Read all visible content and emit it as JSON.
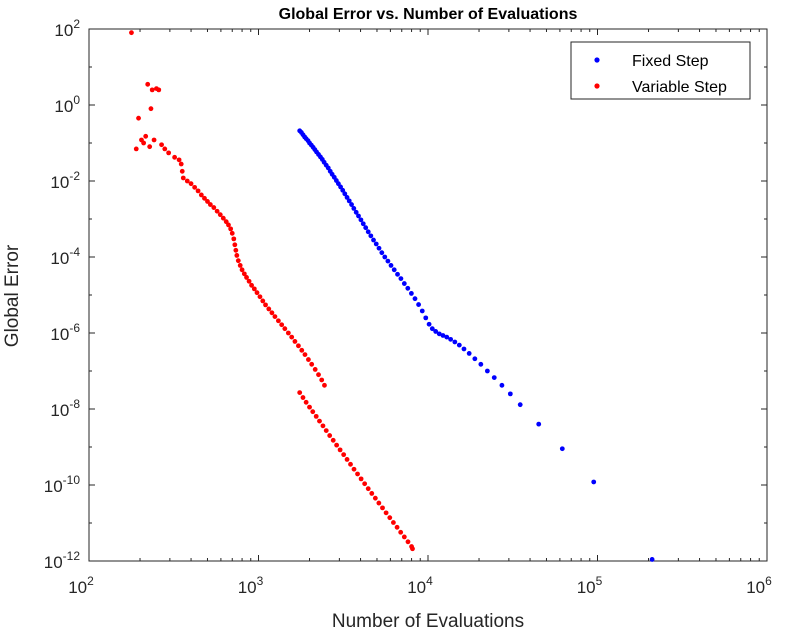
{
  "chart_data": {
    "type": "scatter",
    "title": "Global Error vs. Number of Evaluations",
    "xlabel": "Number of Evaluations",
    "ylabel": "Global Error",
    "xscale": "log",
    "yscale": "log",
    "xlim": [
      100,
      1000000
    ],
    "ylim": [
      1e-12,
      100
    ],
    "grid": false,
    "legend_position": "top-right",
    "x_ticks": [
      {
        "value": 100,
        "base": "10",
        "exp": "2"
      },
      {
        "value": 1000,
        "base": "10",
        "exp": "3"
      },
      {
        "value": 10000,
        "base": "10",
        "exp": "4"
      },
      {
        "value": 100000,
        "base": "10",
        "exp": "5"
      },
      {
        "value": 1000000,
        "base": "10",
        "exp": "6"
      }
    ],
    "y_ticks": [
      {
        "value": 1e-12,
        "base": "10",
        "exp": "-12"
      },
      {
        "value": 1e-10,
        "base": "10",
        "exp": "-10"
      },
      {
        "value": 1e-08,
        "base": "10",
        "exp": "-8"
      },
      {
        "value": 1e-06,
        "base": "10",
        "exp": "-6"
      },
      {
        "value": 0.0001,
        "base": "10",
        "exp": "-4"
      },
      {
        "value": 0.01,
        "base": "10",
        "exp": "-2"
      },
      {
        "value": 1,
        "base": "10",
        "exp": "0"
      },
      {
        "value": 100,
        "base": "10",
        "exp": "2"
      }
    ],
    "series": [
      {
        "name": "Fixed Step",
        "color": "#0000ff",
        "points": [
          [
            1750,
            0.21
          ],
          [
            1790,
            0.19
          ],
          [
            1830,
            0.165
          ],
          [
            1870,
            0.145
          ],
          [
            1910,
            0.13
          ],
          [
            1960,
            0.115
          ],
          [
            2000,
            0.1
          ],
          [
            2050,
            0.088
          ],
          [
            2100,
            0.077
          ],
          [
            2150,
            0.067
          ],
          [
            2200,
            0.058
          ],
          [
            2260,
            0.05
          ],
          [
            2320,
            0.043
          ],
          [
            2380,
            0.037
          ],
          [
            2440,
            0.031
          ],
          [
            2510,
            0.026
          ],
          [
            2580,
            0.022
          ],
          [
            2650,
            0.018
          ],
          [
            2720,
            0.015
          ],
          [
            2800,
            0.0125
          ],
          [
            2880,
            0.0103
          ],
          [
            2960,
            0.0085
          ],
          [
            3050,
            0.007
          ],
          [
            3140,
            0.0057
          ],
          [
            3230,
            0.0046
          ],
          [
            3330,
            0.0037
          ],
          [
            3430,
            0.003
          ],
          [
            3540,
            0.0024
          ],
          [
            3650,
            0.0019
          ],
          [
            3770,
            0.0015
          ],
          [
            3890,
            0.0012
          ],
          [
            4020,
            0.00095
          ],
          [
            4150,
            0.00075
          ],
          [
            4290,
            0.00059
          ],
          [
            4440,
            0.00046
          ],
          [
            4600,
            0.00036
          ],
          [
            4770,
            0.00028
          ],
          [
            4950,
            0.00022
          ],
          [
            5140,
            0.00017
          ],
          [
            5340,
            0.00013
          ],
          [
            5560,
            0.0001
          ],
          [
            5800,
            7.8e-05
          ],
          [
            6050,
            6e-05
          ],
          [
            6320,
            4.6e-05
          ],
          [
            6610,
            3.5e-05
          ],
          [
            6920,
            2.7e-05
          ],
          [
            7250,
            2e-05
          ],
          [
            7600,
            1.5e-05
          ],
          [
            7980,
            1.1e-05
          ],
          [
            8380,
            8e-06
          ],
          [
            8800,
            5.6e-06
          ],
          [
            9250,
            3.8e-06
          ],
          [
            9700,
            2.5e-06
          ],
          [
            10150,
            1.7e-06
          ],
          [
            10600,
            1.3e-06
          ],
          [
            11100,
            1.1e-06
          ],
          [
            11650,
            9.5e-07
          ],
          [
            12250,
            8.6e-07
          ],
          [
            12900,
            7.8e-07
          ],
          [
            13600,
            6.8e-07
          ],
          [
            14400,
            5.8e-07
          ],
          [
            15300,
            4.8e-07
          ],
          [
            16300,
            3.8e-07
          ],
          [
            17500,
            2.9e-07
          ],
          [
            18900,
            2.1e-07
          ],
          [
            20500,
            1.5e-07
          ],
          [
            22400,
            1e-07
          ],
          [
            24600,
            6.7e-08
          ],
          [
            27300,
            4.2e-08
          ],
          [
            30600,
            2.5e-08
          ],
          [
            35000,
            1.3e-08
          ],
          [
            45000,
            4e-09
          ],
          [
            62000,
            9e-10
          ],
          [
            95000,
            1.2e-10
          ],
          [
            210000,
            1.1e-12
          ]
        ]
      },
      {
        "name": "Variable Step",
        "color": "#ff0000",
        "points": [
          [
            178,
            80
          ],
          [
            190,
            0.07
          ],
          [
            196,
            0.45
          ],
          [
            204,
            0.12
          ],
          [
            210,
            0.1
          ],
          [
            216,
            0.15
          ],
          [
            222,
            3.5
          ],
          [
            228,
            0.08
          ],
          [
            232,
            0.8
          ],
          [
            236,
            2.5
          ],
          [
            242,
            0.12
          ],
          [
            250,
            2.7
          ],
          [
            258,
            2.5
          ],
          [
            268,
            0.09
          ],
          [
            280,
            0.07
          ],
          [
            295,
            0.055
          ],
          [
            320,
            0.042
          ],
          [
            340,
            0.036
          ],
          [
            350,
            0.028
          ],
          [
            355,
            0.018
          ],
          [
            360,
            0.012
          ],
          [
            380,
            0.01
          ],
          [
            400,
            0.0085
          ],
          [
            420,
            0.0068
          ],
          [
            440,
            0.0055
          ],
          [
            460,
            0.0043
          ],
          [
            480,
            0.0035
          ],
          [
            500,
            0.0029
          ],
          [
            520,
            0.0024
          ],
          [
            545,
            0.002
          ],
          [
            570,
            0.0016
          ],
          [
            595,
            0.0013
          ],
          [
            620,
            0.00105
          ],
          [
            645,
            0.00085
          ],
          [
            665,
            0.0007
          ],
          [
            685,
            0.00055
          ],
          [
            700,
            0.00042
          ],
          [
            715,
            0.0003
          ],
          [
            725,
            0.00021
          ],
          [
            735,
            0.00015
          ],
          [
            745,
            0.00011
          ],
          [
            760,
            8e-05
          ],
          [
            780,
            6e-05
          ],
          [
            800,
            4.6e-05
          ],
          [
            825,
            3.6e-05
          ],
          [
            850,
            2.9e-05
          ],
          [
            880,
            2.3e-05
          ],
          [
            910,
            1.8e-05
          ],
          [
            945,
            1.45e-05
          ],
          [
            980,
            1.15e-05
          ],
          [
            1020,
            9e-06
          ],
          [
            1060,
            7e-06
          ],
          [
            1100,
            5.5e-06
          ],
          [
            1150,
            4.3e-06
          ],
          [
            1200,
            3.4e-06
          ],
          [
            1250,
            2.7e-06
          ],
          [
            1310,
            2.1e-06
          ],
          [
            1370,
            1.65e-06
          ],
          [
            1430,
            1.3e-06
          ],
          [
            1500,
            1e-06
          ],
          [
            1570,
            7.8e-07
          ],
          [
            1640,
            6e-07
          ],
          [
            1720,
            4.6e-07
          ],
          [
            1800,
            3.5e-07
          ],
          [
            1880,
            2.7e-07
          ],
          [
            1970,
            2e-07
          ],
          [
            2060,
            1.5e-07
          ],
          [
            2160,
            1.1e-07
          ],
          [
            2260,
            8e-08
          ],
          [
            2360,
            5.8e-08
          ],
          [
            2450,
            4.2e-08
          ],
          [
            1750,
            2.7e-08
          ],
          [
            1830,
            2e-08
          ],
          [
            1910,
            1.5e-08
          ],
          [
            2000,
            1.12e-08
          ],
          [
            2090,
            8.5e-09
          ],
          [
            2190,
            6.4e-09
          ],
          [
            2290,
            4.8e-09
          ],
          [
            2400,
            3.6e-09
          ],
          [
            2510,
            2.7e-09
          ],
          [
            2630,
            2e-09
          ],
          [
            2760,
            1.5e-09
          ],
          [
            2890,
            1.12e-09
          ],
          [
            3030,
            8.4e-10
          ],
          [
            3180,
            6.3e-10
          ],
          [
            3330,
            4.7e-10
          ],
          [
            3490,
            3.5e-10
          ],
          [
            3660,
            2.6e-10
          ],
          [
            3840,
            1.95e-10
          ],
          [
            4030,
            1.45e-10
          ],
          [
            4230,
            1.08e-10
          ],
          [
            4440,
            8e-11
          ],
          [
            4660,
            6e-11
          ],
          [
            4890,
            4.5e-11
          ],
          [
            5130,
            3.35e-11
          ],
          [
            5390,
            2.5e-11
          ],
          [
            5660,
            1.85e-11
          ],
          [
            5950,
            1.38e-11
          ],
          [
            6250,
            1.03e-11
          ],
          [
            6570,
            7.7e-12
          ],
          [
            6900,
            5.7e-12
          ],
          [
            7250,
            4.3e-12
          ],
          [
            7620,
            3.2e-12
          ],
          [
            8000,
            2.4e-12
          ],
          [
            8100,
            2.1e-12
          ]
        ]
      }
    ]
  }
}
